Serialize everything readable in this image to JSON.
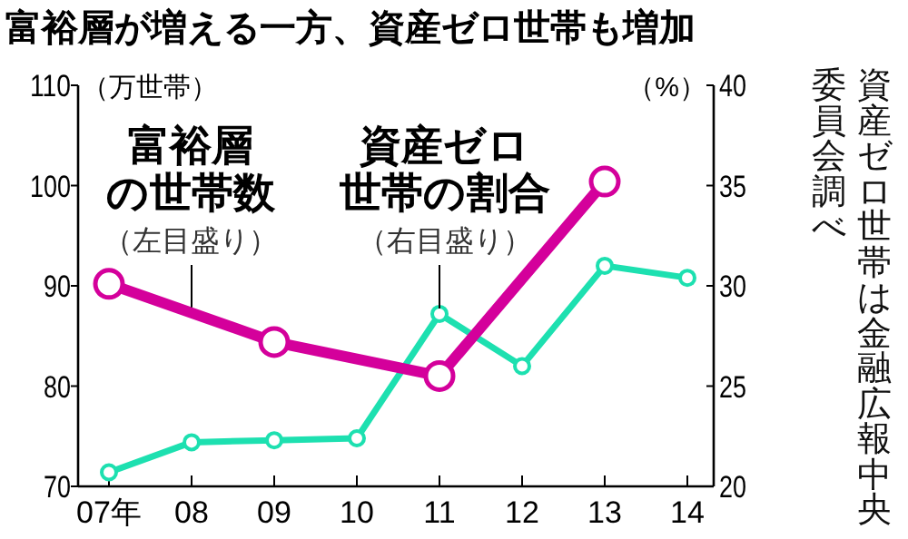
{
  "chart_data": {
    "type": "line",
    "title": "富裕層が増える一方、資産ゼロ世帯も増加",
    "ylabel": "（万世帯）",
    "y2label": "（%）",
    "categories": [
      "07年",
      "08",
      "09",
      "10",
      "11",
      "12",
      "13",
      "14"
    ],
    "series": [
      {
        "name": "富裕層の世帯数",
        "color": "#d4009b",
        "values": [
          90.2,
          null,
          84.4,
          null,
          81.0,
          null,
          100.4,
          null
        ]
      },
      {
        "name": "資産ゼロ世帯の割合",
        "color": "#1de0b0",
        "axis": "y2",
        "values": [
          20.7,
          22.2,
          22.3,
          22.4,
          28.6,
          26.0,
          31.0,
          30.4
        ]
      }
    ],
    "ylim": [
      70,
      110
    ],
    "yticks": [
      70,
      80,
      90,
      100,
      110
    ],
    "y2lim": [
      20,
      40
    ],
    "y2ticks": [
      20,
      25,
      30,
      35,
      40
    ],
    "marker": "circle",
    "annotations": [
      {
        "text": "（左目盛り）",
        "x": "08",
        "y": 87.3
      },
      {
        "text": "（右目盛り）",
        "x": "11",
        "y": 87.2
      },
      "資産ゼロ世帯は金融広報中央委員会調べ"
    ]
  }
}
